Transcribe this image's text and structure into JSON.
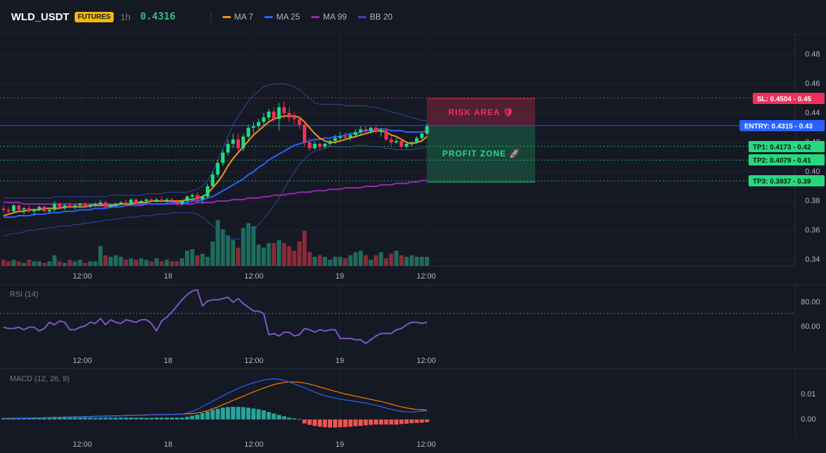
{
  "header": {
    "symbol": "WLD_USDT",
    "badge": "FUTURES",
    "timeframe": "1h",
    "price": "0.4316",
    "legend": [
      {
        "label": "MA 7",
        "color": "#f7931a"
      },
      {
        "label": "MA 25",
        "color": "#2962ff"
      },
      {
        "label": "MA 99",
        "color": "#9c27b0"
      },
      {
        "label": "BB 20",
        "color": "#3949ab"
      }
    ]
  },
  "colors": {
    "up": "#26d97f",
    "down": "#f0305a",
    "vol_up": "#1f6b5a",
    "vol_down": "#8b2a3a",
    "ma7": "#f7931a",
    "ma25": "#2962ff",
    "ma99": "#9c27b0",
    "bb": "#3949ab",
    "rsi": "#7e57c2",
    "macd": "#2962ff",
    "signal": "#f57c00",
    "hist_up": "#26a69a",
    "hist_down": "#ef5350"
  },
  "main": {
    "y_ticks": [
      "0.48",
      "0.46",
      "0.44",
      "0.42",
      "0.40",
      "0.38",
      "0.36",
      "0.34"
    ],
    "x_ticks": [
      "12:00",
      "18",
      "12:00",
      "19",
      "12:00"
    ],
    "risk_label": "RISK AREA 🛡",
    "profit_label": "PROFIT ZONE 🚀",
    "tags": [
      {
        "name": "sl",
        "text": "SL: 0.4504 - 0.45",
        "value": 0.4504,
        "bg": "#f0305a",
        "fg": "#ffffff"
      },
      {
        "name": "entry",
        "text": "ENTRY: 0.4315 - 0.43",
        "value": 0.4315,
        "bg": "#2962ff",
        "fg": "#ffffff"
      },
      {
        "name": "tp1",
        "text": "TP1: 0.4173 - 0.42",
        "value": 0.4173,
        "bg": "#26d97f",
        "fg": "#0b1a12"
      },
      {
        "name": "tp2",
        "text": "TP2: 0.4079 - 0.41",
        "value": 0.4079,
        "bg": "#26d97f",
        "fg": "#0b1a12"
      },
      {
        "name": "tp3",
        "text": "TP3: 0.3937 - 0.39",
        "value": 0.3937,
        "bg": "#26d97f",
        "fg": "#0b1a12"
      }
    ]
  },
  "rsi": {
    "label": "RSI (14)",
    "y_ticks": [
      "80.00",
      "60.00"
    ],
    "x_ticks": [
      "12:00",
      "18",
      "12:00",
      "19",
      "12:00"
    ]
  },
  "macd": {
    "label": "MACD (12, 26, 9)",
    "y_ticks": [
      "0.01",
      "0.00"
    ],
    "x_ticks": [
      "12:00",
      "18",
      "12:00",
      "19",
      "12:00"
    ]
  },
  "chart_data": {
    "type": "candlestick",
    "main_yrange": [
      0.335,
      0.49
    ],
    "candles": [
      [
        0.375,
        0.377,
        0.372,
        0.374
      ],
      [
        0.374,
        0.376,
        0.371,
        0.373
      ],
      [
        0.373,
        0.378,
        0.372,
        0.377
      ],
      [
        0.377,
        0.378,
        0.373,
        0.374
      ],
      [
        0.374,
        0.376,
        0.371,
        0.375
      ],
      [
        0.375,
        0.377,
        0.372,
        0.373
      ],
      [
        0.373,
        0.375,
        0.37,
        0.374
      ],
      [
        0.374,
        0.377,
        0.373,
        0.376
      ],
      [
        0.376,
        0.377,
        0.372,
        0.373
      ],
      [
        0.373,
        0.375,
        0.371,
        0.374
      ],
      [
        0.374,
        0.38,
        0.373,
        0.378
      ],
      [
        0.378,
        0.379,
        0.374,
        0.375
      ],
      [
        0.375,
        0.378,
        0.374,
        0.377
      ],
      [
        0.377,
        0.379,
        0.375,
        0.376
      ],
      [
        0.376,
        0.378,
        0.374,
        0.377
      ],
      [
        0.377,
        0.379,
        0.376,
        0.378
      ],
      [
        0.378,
        0.379,
        0.375,
        0.376
      ],
      [
        0.376,
        0.378,
        0.375,
        0.377
      ],
      [
        0.377,
        0.379,
        0.376,
        0.378
      ],
      [
        0.378,
        0.381,
        0.377,
        0.379
      ],
      [
        0.379,
        0.38,
        0.375,
        0.376
      ],
      [
        0.376,
        0.378,
        0.375,
        0.377
      ],
      [
        0.377,
        0.379,
        0.376,
        0.378
      ],
      [
        0.378,
        0.38,
        0.377,
        0.379
      ],
      [
        0.379,
        0.381,
        0.377,
        0.378
      ],
      [
        0.378,
        0.382,
        0.377,
        0.381
      ],
      [
        0.381,
        0.382,
        0.378,
        0.379
      ],
      [
        0.379,
        0.381,
        0.378,
        0.38
      ],
      [
        0.38,
        0.382,
        0.379,
        0.381
      ],
      [
        0.381,
        0.382,
        0.379,
        0.38
      ],
      [
        0.38,
        0.382,
        0.379,
        0.381
      ],
      [
        0.381,
        0.383,
        0.379,
        0.38
      ],
      [
        0.38,
        0.382,
        0.378,
        0.381
      ],
      [
        0.381,
        0.382,
        0.379,
        0.38
      ],
      [
        0.38,
        0.381,
        0.377,
        0.378
      ],
      [
        0.378,
        0.381,
        0.377,
        0.38
      ],
      [
        0.38,
        0.384,
        0.379,
        0.383
      ],
      [
        0.383,
        0.385,
        0.381,
        0.384
      ],
      [
        0.384,
        0.386,
        0.38,
        0.381
      ],
      [
        0.381,
        0.384,
        0.378,
        0.383
      ],
      [
        0.383,
        0.392,
        0.382,
        0.39
      ],
      [
        0.39,
        0.4,
        0.389,
        0.398
      ],
      [
        0.398,
        0.408,
        0.396,
        0.406
      ],
      [
        0.406,
        0.415,
        0.404,
        0.413
      ],
      [
        0.413,
        0.422,
        0.411,
        0.419
      ],
      [
        0.419,
        0.426,
        0.416,
        0.422
      ],
      [
        0.422,
        0.426,
        0.413,
        0.416
      ],
      [
        0.416,
        0.426,
        0.414,
        0.424
      ],
      [
        0.424,
        0.432,
        0.422,
        0.43
      ],
      [
        0.43,
        0.434,
        0.426,
        0.431
      ],
      [
        0.431,
        0.436,
        0.429,
        0.434
      ],
      [
        0.434,
        0.44,
        0.431,
        0.437
      ],
      [
        0.437,
        0.443,
        0.435,
        0.441
      ],
      [
        0.441,
        0.444,
        0.434,
        0.436
      ],
      [
        0.436,
        0.447,
        0.428,
        0.444
      ],
      [
        0.444,
        0.448,
        0.436,
        0.44
      ],
      [
        0.44,
        0.444,
        0.434,
        0.437
      ],
      [
        0.437,
        0.441,
        0.432,
        0.436
      ],
      [
        0.436,
        0.438,
        0.429,
        0.432
      ],
      [
        0.432,
        0.434,
        0.417,
        0.42
      ],
      [
        0.42,
        0.423,
        0.414,
        0.416
      ],
      [
        0.416,
        0.421,
        0.415,
        0.419
      ],
      [
        0.419,
        0.42,
        0.415,
        0.417
      ],
      [
        0.417,
        0.42,
        0.416,
        0.419
      ],
      [
        0.419,
        0.422,
        0.417,
        0.421
      ],
      [
        0.421,
        0.425,
        0.419,
        0.423
      ],
      [
        0.423,
        0.427,
        0.421,
        0.424
      ],
      [
        0.424,
        0.427,
        0.421,
        0.423
      ],
      [
        0.423,
        0.426,
        0.421,
        0.425
      ],
      [
        0.425,
        0.429,
        0.423,
        0.427
      ],
      [
        0.427,
        0.431,
        0.425,
        0.429
      ],
      [
        0.429,
        0.431,
        0.426,
        0.428
      ],
      [
        0.428,
        0.431,
        0.426,
        0.43
      ],
      [
        0.43,
        0.432,
        0.426,
        0.427
      ],
      [
        0.427,
        0.43,
        0.424,
        0.428
      ],
      [
        0.428,
        0.43,
        0.421,
        0.422
      ],
      [
        0.422,
        0.424,
        0.418,
        0.42
      ],
      [
        0.42,
        0.423,
        0.419,
        0.421
      ],
      [
        0.421,
        0.422,
        0.416,
        0.417
      ],
      [
        0.417,
        0.42,
        0.416,
        0.419
      ],
      [
        0.419,
        0.421,
        0.417,
        0.42
      ],
      [
        0.42,
        0.424,
        0.419,
        0.423
      ],
      [
        0.423,
        0.427,
        0.422,
        0.426
      ],
      [
        0.426,
        0.433,
        0.425,
        0.431
      ]
    ],
    "volume": [
      4,
      3,
      4,
      3,
      2,
      4,
      3,
      3,
      2,
      3,
      7,
      3,
      2,
      4,
      3,
      4,
      2,
      3,
      3,
      13,
      7,
      6,
      7,
      6,
      4,
      5,
      4,
      5,
      4,
      3,
      5,
      3,
      4,
      3,
      3,
      5,
      10,
      11,
      7,
      8,
      6,
      16,
      30,
      24,
      20,
      17,
      12,
      25,
      28,
      26,
      14,
      12,
      15,
      15,
      17,
      15,
      13,
      10,
      16,
      23,
      9,
      6,
      7,
      6,
      4,
      6,
      6,
      5,
      7,
      9,
      10,
      7,
      4,
      7,
      9,
      5,
      8,
      10,
      7,
      6,
      7,
      6,
      6,
      6
    ],
    "ma7": [
      0.37,
      0.371,
      0.372,
      0.373,
      0.373,
      0.374,
      0.374,
      0.374,
      0.375,
      0.375,
      0.375,
      0.375,
      0.376,
      0.376,
      0.376,
      0.376,
      0.376,
      0.377,
      0.377,
      0.377,
      0.377,
      0.377,
      0.377,
      0.378,
      0.378,
      0.378,
      0.379,
      0.379,
      0.379,
      0.38,
      0.38,
      0.38,
      0.38,
      0.38,
      0.38,
      0.38,
      0.381,
      0.381,
      0.382,
      0.383,
      0.385,
      0.389,
      0.393,
      0.398,
      0.404,
      0.409,
      0.413,
      0.417,
      0.421,
      0.425,
      0.428,
      0.431,
      0.434,
      0.436,
      0.437,
      0.438,
      0.438,
      0.438,
      0.437,
      0.434,
      0.43,
      0.426,
      0.423,
      0.421,
      0.42,
      0.42,
      0.421,
      0.422,
      0.423,
      0.424,
      0.425,
      0.426,
      0.427,
      0.428,
      0.428,
      0.427,
      0.425,
      0.424,
      0.422,
      0.42,
      0.419,
      0.42,
      0.421,
      0.424
    ],
    "ma25": [
      0.369,
      0.369,
      0.369,
      0.37,
      0.37,
      0.37,
      0.371,
      0.371,
      0.371,
      0.372,
      0.372,
      0.372,
      0.373,
      0.373,
      0.373,
      0.374,
      0.374,
      0.374,
      0.375,
      0.375,
      0.375,
      0.376,
      0.376,
      0.376,
      0.377,
      0.377,
      0.377,
      0.377,
      0.378,
      0.378,
      0.378,
      0.378,
      0.378,
      0.379,
      0.379,
      0.379,
      0.379,
      0.38,
      0.38,
      0.381,
      0.382,
      0.383,
      0.385,
      0.387,
      0.389,
      0.391,
      0.393,
      0.395,
      0.398,
      0.4,
      0.403,
      0.405,
      0.408,
      0.41,
      0.412,
      0.414,
      0.416,
      0.418,
      0.419,
      0.42,
      0.421,
      0.422,
      0.422,
      0.423,
      0.423,
      0.424,
      0.424,
      0.425,
      0.426,
      0.426,
      0.427,
      0.428,
      0.428,
      0.429,
      0.429,
      0.429,
      0.428,
      0.428,
      0.428,
      0.427,
      0.427,
      0.427,
      0.427,
      0.428
    ],
    "ma99": [
      0.379,
      0.379,
      0.379,
      0.379,
      0.378,
      0.378,
      0.378,
      0.378,
      0.378,
      0.378,
      0.378,
      0.378,
      0.378,
      0.378,
      0.378,
      0.378,
      0.378,
      0.378,
      0.378,
      0.378,
      0.378,
      0.378,
      0.378,
      0.378,
      0.378,
      0.378,
      0.378,
      0.378,
      0.378,
      0.378,
      0.378,
      0.378,
      0.378,
      0.378,
      0.378,
      0.378,
      0.378,
      0.378,
      0.379,
      0.379,
      0.379,
      0.379,
      0.38,
      0.38,
      0.38,
      0.381,
      0.381,
      0.381,
      0.382,
      0.382,
      0.382,
      0.383,
      0.383,
      0.384,
      0.384,
      0.384,
      0.385,
      0.385,
      0.386,
      0.386,
      0.386,
      0.387,
      0.387,
      0.387,
      0.388,
      0.388,
      0.388,
      0.389,
      0.389,
      0.389,
      0.389,
      0.39,
      0.39,
      0.39,
      0.391,
      0.391,
      0.391,
      0.392,
      0.392,
      0.392,
      0.393,
      0.393,
      0.394,
      0.394
    ],
    "bb_upper": [
      0.382,
      0.382,
      0.382,
      0.382,
      0.382,
      0.382,
      0.382,
      0.382,
      0.382,
      0.382,
      0.383,
      0.383,
      0.383,
      0.383,
      0.383,
      0.383,
      0.383,
      0.383,
      0.383,
      0.383,
      0.383,
      0.384,
      0.384,
      0.384,
      0.384,
      0.384,
      0.384,
      0.384,
      0.385,
      0.385,
      0.385,
      0.385,
      0.386,
      0.386,
      0.386,
      0.386,
      0.386,
      0.387,
      0.388,
      0.39,
      0.394,
      0.4,
      0.408,
      0.416,
      0.424,
      0.432,
      0.438,
      0.443,
      0.448,
      0.452,
      0.455,
      0.458,
      0.459,
      0.46,
      0.46,
      0.46,
      0.459,
      0.458,
      0.456,
      0.453,
      0.45,
      0.447,
      0.446,
      0.446,
      0.446,
      0.446,
      0.446,
      0.445,
      0.445,
      0.445,
      0.445,
      0.445,
      0.444,
      0.444,
      0.443,
      0.442,
      0.441,
      0.44,
      0.439,
      0.438,
      0.437,
      0.436,
      0.435,
      0.435
    ],
    "bb_lower": [
      0.356,
      0.357,
      0.358,
      0.358,
      0.359,
      0.36,
      0.36,
      0.361,
      0.361,
      0.362,
      0.362,
      0.363,
      0.363,
      0.363,
      0.364,
      0.364,
      0.365,
      0.365,
      0.366,
      0.366,
      0.367,
      0.367,
      0.368,
      0.368,
      0.369,
      0.369,
      0.369,
      0.37,
      0.37,
      0.37,
      0.371,
      0.371,
      0.371,
      0.372,
      0.372,
      0.372,
      0.372,
      0.372,
      0.371,
      0.369,
      0.366,
      0.363,
      0.36,
      0.357,
      0.355,
      0.354,
      0.354,
      0.355,
      0.357,
      0.36,
      0.364,
      0.368,
      0.372,
      0.377,
      0.382,
      0.388,
      0.394,
      0.4,
      0.405,
      0.409,
      0.412,
      0.414,
      0.415,
      0.416,
      0.417,
      0.417,
      0.417,
      0.417,
      0.417,
      0.418,
      0.418,
      0.418,
      0.417,
      0.417,
      0.417,
      0.416,
      0.416,
      0.415,
      0.415,
      0.415,
      0.415,
      0.416,
      0.416,
      0.417
    ],
    "rsi_range": [
      40,
      92
    ],
    "rsi": [
      58,
      57,
      57,
      58,
      56,
      58,
      58,
      55,
      57,
      62,
      60,
      63,
      62,
      56,
      56,
      58,
      59,
      62,
      61,
      65,
      60,
      64,
      62,
      61,
      64,
      63,
      62,
      64,
      64,
      61,
      55,
      63,
      66,
      70,
      75,
      80,
      84,
      87,
      88,
      75,
      79,
      80,
      80,
      81,
      82,
      78,
      81,
      77,
      74,
      71,
      71,
      69,
      52,
      53,
      51,
      54,
      54,
      51,
      52,
      57,
      56,
      54,
      56,
      55,
      56,
      56,
      49,
      49,
      49,
      48,
      48,
      45,
      48,
      51,
      53,
      53,
      53,
      56,
      57,
      60,
      62,
      62,
      61,
      62
    ],
    "macd_range": [
      -0.006,
      0.019
    ],
    "macd": [
      0.0002,
      0.0002,
      0.0003,
      0.0004,
      0.0004,
      0.0005,
      0.0005,
      0.0006,
      0.0006,
      0.0007,
      0.0007,
      0.0008,
      0.0008,
      0.0009,
      0.0009,
      0.001,
      0.001,
      0.0011,
      0.0011,
      0.0012,
      0.0012,
      0.0013,
      0.0013,
      0.0014,
      0.0014,
      0.0015,
      0.0015,
      0.0016,
      0.0016,
      0.0017,
      0.0017,
      0.0018,
      0.0018,
      0.0019,
      0.0019,
      0.002,
      0.0024,
      0.003,
      0.0038,
      0.0048,
      0.0058,
      0.0068,
      0.0078,
      0.0088,
      0.0098,
      0.0107,
      0.0116,
      0.0124,
      0.0131,
      0.0137,
      0.0142,
      0.0147,
      0.015,
      0.0152,
      0.015,
      0.0146,
      0.014,
      0.0133,
      0.0126,
      0.0118,
      0.011,
      0.0102,
      0.0095,
      0.0089,
      0.0084,
      0.008,
      0.0076,
      0.0073,
      0.007,
      0.0067,
      0.0064,
      0.0061,
      0.0057,
      0.0053,
      0.0048,
      0.0043,
      0.0038,
      0.0034,
      0.0031,
      0.0029,
      0.0028,
      0.0029,
      0.0031,
      0.0034
    ],
    "signal": [
      0.0003,
      0.0003,
      0.0004,
      0.0004,
      0.0005,
      0.0005,
      0.0006,
      0.0006,
      0.0007,
      0.0007,
      0.0008,
      0.0008,
      0.0009,
      0.0009,
      0.001,
      0.001,
      0.0011,
      0.0011,
      0.0012,
      0.0012,
      0.0013,
      0.0013,
      0.0014,
      0.0014,
      0.0015,
      0.0015,
      0.0016,
      0.0016,
      0.0017,
      0.0017,
      0.0018,
      0.0018,
      0.0019,
      0.0019,
      0.002,
      0.002,
      0.0021,
      0.0022,
      0.0024,
      0.0028,
      0.0033,
      0.004,
      0.0047,
      0.0055,
      0.0063,
      0.0071,
      0.0079,
      0.0087,
      0.0095,
      0.0103,
      0.011,
      0.0117,
      0.0124,
      0.013,
      0.0135,
      0.0138,
      0.014,
      0.014,
      0.0139,
      0.0136,
      0.0132,
      0.0127,
      0.0121,
      0.0116,
      0.011,
      0.0105,
      0.01,
      0.0095,
      0.0091,
      0.0087,
      0.0083,
      0.0079,
      0.0075,
      0.0071,
      0.0067,
      0.0062,
      0.0057,
      0.0052,
      0.0047,
      0.0043,
      0.004,
      0.0037,
      0.0036,
      0.0035
    ],
    "histogram": [
      0.0005,
      0.0006,
      0.0006,
      0.0006,
      0.0006,
      0.0006,
      0.0007,
      0.0007,
      0.0007,
      0.0006,
      0.0007,
      0.0007,
      0.0007,
      0.0007,
      0.0007,
      0.0007,
      0.0007,
      0.0007,
      0.0006,
      0.0007,
      0.0007,
      0.0007,
      0.0007,
      0.0007,
      0.0007,
      0.0007,
      0.0007,
      0.0007,
      0.0006,
      0.0006,
      0.0007,
      0.0007,
      0.0007,
      0.0007,
      0.0007,
      0.0007,
      0.001,
      0.0014,
      0.0018,
      0.0024,
      0.003,
      0.0036,
      0.004,
      0.0044,
      0.0046,
      0.0047,
      0.0047,
      0.0046,
      0.0044,
      0.0041,
      0.0038,
      0.0034,
      0.0028,
      0.0022,
      0.0017,
      0.0012,
      0.0007,
      0.0004,
      0.0001,
      -0.0015,
      -0.002,
      -0.0024,
      -0.0027,
      -0.0029,
      -0.003,
      -0.003,
      -0.0029,
      -0.0028,
      -0.0027,
      -0.0025,
      -0.0024,
      -0.0022,
      -0.002,
      -0.0019,
      -0.0019,
      -0.0019,
      -0.0019,
      -0.0019,
      -0.0017,
      -0.0016,
      -0.0014,
      -0.0013,
      -0.0012,
      -0.001
    ]
  }
}
